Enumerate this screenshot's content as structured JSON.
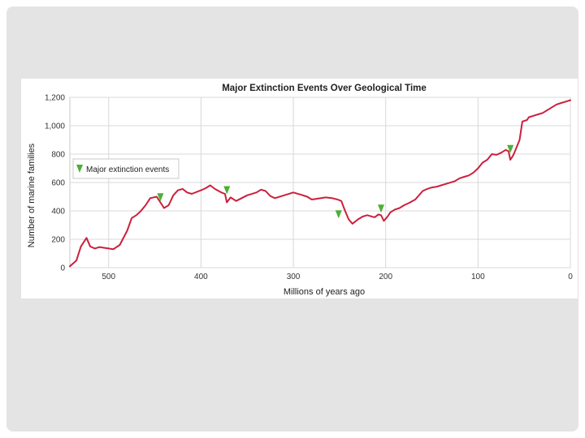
{
  "chart_data": {
    "type": "line",
    "title": "Major Extinction Events Over Geological Time",
    "xlabel": "Millions of years ago",
    "ylabel": "Number of marine families",
    "xlim": [
      542,
      0
    ],
    "ylim": [
      0,
      1200
    ],
    "x_ticks": [
      500,
      400,
      300,
      200,
      100,
      0
    ],
    "y_ticks": [
      0,
      200,
      400,
      600,
      800,
      1000,
      1200
    ],
    "y_tick_labels": [
      "0",
      "200",
      "400",
      "600",
      "800",
      "1,000",
      "1,200"
    ],
    "grid": true,
    "legend": {
      "position": "left",
      "entries": [
        "Major extinction events"
      ]
    },
    "colors": {
      "line": "#cc1f3d",
      "marker": "#4caf37",
      "grid": "#d8d8d8"
    },
    "series": [
      {
        "x": [
          542,
          535,
          530,
          524,
          520,
          515,
          510,
          505,
          495,
          488,
          480,
          475,
          470,
          465,
          460,
          455,
          448,
          444,
          440,
          435,
          430,
          425,
          420,
          415,
          410,
          400,
          395,
          390,
          385,
          378,
          374,
          372,
          368,
          362,
          356,
          350,
          340,
          335,
          330,
          325,
          320,
          310,
          300,
          292,
          285,
          280,
          270,
          265,
          258,
          252,
          248,
          244,
          240,
          236,
          230,
          225,
          220,
          212,
          208,
          205,
          202,
          198,
          195,
          190,
          185,
          180,
          175,
          168,
          160,
          155,
          150,
          145,
          140,
          135,
          125,
          120,
          115,
          110,
          105,
          100,
          95,
          90,
          85,
          80,
          75,
          70,
          67,
          65,
          62,
          60,
          55,
          52,
          47,
          45,
          40,
          35,
          30,
          25,
          20,
          15,
          10,
          5,
          0
        ],
        "y": [
          10,
          50,
          150,
          210,
          150,
          135,
          145,
          140,
          130,
          160,
          260,
          350,
          370,
          400,
          440,
          490,
          500,
          460,
          420,
          440,
          510,
          545,
          555,
          530,
          520,
          545,
          560,
          580,
          555,
          530,
          520,
          460,
          495,
          470,
          490,
          510,
          530,
          550,
          540,
          505,
          490,
          510,
          530,
          515,
          500,
          480,
          490,
          495,
          490,
          480,
          470,
          400,
          340,
          310,
          340,
          360,
          370,
          355,
          375,
          370,
          330,
          360,
          390,
          410,
          420,
          440,
          455,
          480,
          540,
          555,
          565,
          570,
          580,
          590,
          610,
          630,
          640,
          650,
          670,
          700,
          740,
          760,
          800,
          795,
          810,
          830,
          820,
          760,
          790,
          820,
          900,
          1030,
          1040,
          1060,
          1070,
          1080,
          1090,
          1110,
          1130,
          1150,
          1160,
          1170,
          1180
        ]
      }
    ],
    "extinction_events": [
      {
        "x": 444,
        "y": 490
      },
      {
        "x": 372,
        "y": 540
      },
      {
        "x": 251,
        "y": 370
      },
      {
        "x": 205,
        "y": 410
      },
      {
        "x": 65,
        "y": 830
      }
    ]
  }
}
